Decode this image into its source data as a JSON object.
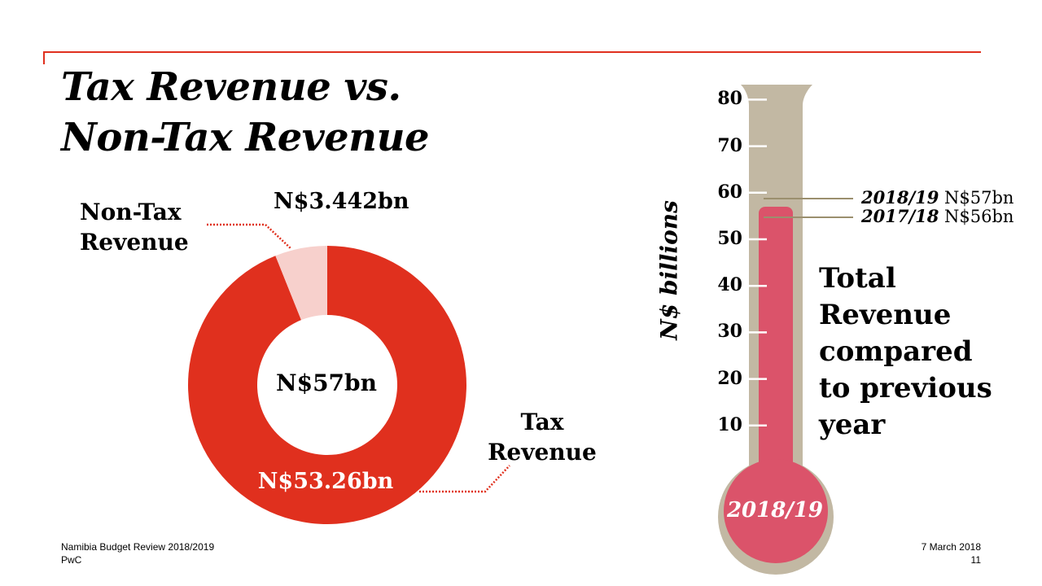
{
  "slide": {
    "title_line1": "Tax Revenue vs.",
    "title_line2": "Non-Tax Revenue",
    "accent_color": "#e0301e"
  },
  "chart_data": [
    {
      "type": "pie",
      "center_label": "N$57bn",
      "slices": [
        {
          "name_line1": "Non-Tax",
          "name_line2": "Revenue",
          "value": 3.442,
          "value_label": "N$3.442bn",
          "color": "#f7d0cc"
        },
        {
          "name_line1": "Tax",
          "name_line2": "Revenue",
          "value": 53.26,
          "value_label": "N$53.26bn",
          "color": "#e0301e"
        }
      ]
    },
    {
      "type": "bar",
      "style": "thermometer",
      "ylabel": "N$ billions",
      "ylim": [
        0,
        80
      ],
      "yticks": [
        10,
        20,
        30,
        40,
        50,
        60,
        70,
        80
      ],
      "fill_value": 57,
      "bulb_label": "2018/19",
      "fill_color": "#db536a",
      "tube_color": "#c2b8a3",
      "annotations": [
        {
          "year": "2018/19",
          "text": "N$57bn",
          "value": 57
        },
        {
          "year": "2017/18",
          "text": "N$56bn",
          "value": 56
        }
      ],
      "side_text": [
        "Total",
        "Revenue",
        "compared",
        "to previous",
        "year"
      ]
    }
  ],
  "footer": {
    "left_line1": "Namibia Budget Review 2018/2019",
    "left_line2": "PwC",
    "date": "7 March 2018",
    "page_number": "11"
  }
}
